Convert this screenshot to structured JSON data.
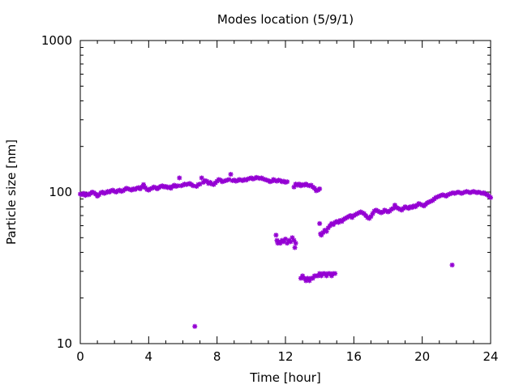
{
  "chart_data": {
    "type": "scatter",
    "title": "Modes location (5/9/1)",
    "xlabel": "Time [hour]",
    "ylabel": "Particle size [nm]",
    "xlim": [
      0,
      24
    ],
    "ylim": [
      10,
      1000
    ],
    "yscale": "log",
    "grid": false,
    "legend": "none",
    "x_ticks": [
      0,
      4,
      8,
      12,
      16,
      20,
      24
    ],
    "x_tick_labels": [
      "0",
      "4",
      "8",
      "12",
      "16",
      "20",
      "24"
    ],
    "y_ticks": [
      10,
      100,
      1000
    ],
    "y_tick_labels": [
      "10",
      "100",
      "1000"
    ],
    "marker_color": "#9400d3",
    "marker": "asterisk",
    "series": [
      {
        "name": "",
        "points": [
          [
            0.0,
            97
          ],
          [
            0.1,
            96
          ],
          [
            0.2,
            98
          ],
          [
            0.3,
            95
          ],
          [
            0.4,
            97
          ],
          [
            0.5,
            96
          ],
          [
            0.6,
            98
          ],
          [
            0.7,
            100
          ],
          [
            0.8,
            99
          ],
          [
            0.9,
            97
          ],
          [
            1.0,
            94
          ],
          [
            1.1,
            96
          ],
          [
            1.2,
            99
          ],
          [
            1.3,
            100
          ],
          [
            1.4,
            98
          ],
          [
            1.5,
            99
          ],
          [
            1.6,
            101
          ],
          [
            1.7,
            100
          ],
          [
            1.8,
            102
          ],
          [
            1.9,
            103
          ],
          [
            2.0,
            101
          ],
          [
            2.1,
            100
          ],
          [
            2.2,
            102
          ],
          [
            2.3,
            103
          ],
          [
            2.4,
            101
          ],
          [
            2.5,
            102
          ],
          [
            2.6,
            104
          ],
          [
            2.7,
            106
          ],
          [
            2.8,
            105
          ],
          [
            2.9,
            104
          ],
          [
            3.0,
            103
          ],
          [
            3.1,
            105
          ],
          [
            3.2,
            104
          ],
          [
            3.3,
            106
          ],
          [
            3.4,
            107
          ],
          [
            3.5,
            105
          ],
          [
            3.6,
            108
          ],
          [
            3.7,
            112
          ],
          [
            3.8,
            107
          ],
          [
            3.9,
            104
          ],
          [
            4.0,
            103
          ],
          [
            4.1,
            105
          ],
          [
            4.2,
            106
          ],
          [
            4.3,
            108
          ],
          [
            4.4,
            107
          ],
          [
            4.5,
            105
          ],
          [
            4.6,
            107
          ],
          [
            4.7,
            109
          ],
          [
            4.8,
            110
          ],
          [
            4.9,
            108
          ],
          [
            5.0,
            109
          ],
          [
            5.1,
            107
          ],
          [
            5.2,
            108
          ],
          [
            5.3,
            106
          ],
          [
            5.4,
            109
          ],
          [
            5.5,
            111
          ],
          [
            5.6,
            109
          ],
          [
            5.7,
            110
          ],
          [
            5.8,
            124
          ],
          [
            5.9,
            110
          ],
          [
            6.0,
            111
          ],
          [
            6.1,
            113
          ],
          [
            6.2,
            112
          ],
          [
            6.3,
            113
          ],
          [
            6.4,
            114
          ],
          [
            6.5,
            112
          ],
          [
            6.6,
            110
          ],
          [
            6.7,
            13
          ],
          [
            6.8,
            109
          ],
          [
            6.9,
            112
          ],
          [
            7.0,
            113
          ],
          [
            7.1,
            124
          ],
          [
            7.2,
            116
          ],
          [
            7.3,
            119
          ],
          [
            7.4,
            118
          ],
          [
            7.5,
            114
          ],
          [
            7.6,
            116
          ],
          [
            7.7,
            113
          ],
          [
            7.8,
            112
          ],
          [
            7.9,
            115
          ],
          [
            8.0,
            118
          ],
          [
            8.1,
            121
          ],
          [
            8.2,
            120
          ],
          [
            8.3,
            117
          ],
          [
            8.4,
            118
          ],
          [
            8.5,
            119
          ],
          [
            8.6,
            120
          ],
          [
            8.7,
            121
          ],
          [
            8.8,
            131
          ],
          [
            8.9,
            119
          ],
          [
            9.0,
            120
          ],
          [
            9.1,
            118
          ],
          [
            9.2,
            119
          ],
          [
            9.3,
            121
          ],
          [
            9.4,
            120
          ],
          [
            9.5,
            119
          ],
          [
            9.6,
            121
          ],
          [
            9.7,
            120
          ],
          [
            9.8,
            122
          ],
          [
            9.9,
            123
          ],
          [
            10.0,
            124
          ],
          [
            10.1,
            122
          ],
          [
            10.2,
            123
          ],
          [
            10.3,
            125
          ],
          [
            10.4,
            124
          ],
          [
            10.5,
            123
          ],
          [
            10.6,
            124
          ],
          [
            10.7,
            122
          ],
          [
            10.8,
            121
          ],
          [
            10.9,
            120
          ],
          [
            11.0,
            119
          ],
          [
            11.1,
            117
          ],
          [
            11.2,
            118
          ],
          [
            11.3,
            121
          ],
          [
            11.4,
            119
          ],
          [
            11.5,
            118
          ],
          [
            11.6,
            120
          ],
          [
            11.7,
            119
          ],
          [
            11.8,
            117
          ],
          [
            11.9,
            118
          ],
          [
            12.0,
            116
          ],
          [
            12.1,
            117
          ],
          [
            11.45,
            52
          ],
          [
            11.5,
            48
          ],
          [
            11.55,
            46
          ],
          [
            11.6,
            47
          ],
          [
            11.7,
            46
          ],
          [
            11.8,
            48
          ],
          [
            11.9,
            47
          ],
          [
            12.0,
            49
          ],
          [
            12.1,
            46
          ],
          [
            12.2,
            48
          ],
          [
            12.3,
            47
          ],
          [
            12.4,
            50
          ],
          [
            12.5,
            48
          ],
          [
            12.55,
            43
          ],
          [
            12.6,
            46
          ],
          [
            12.5,
            108
          ],
          [
            12.6,
            113
          ],
          [
            12.7,
            111
          ],
          [
            12.8,
            113
          ],
          [
            12.9,
            110
          ],
          [
            13.0,
            112
          ],
          [
            13.1,
            111
          ],
          [
            13.2,
            113
          ],
          [
            13.3,
            111
          ],
          [
            13.4,
            110
          ],
          [
            13.5,
            111
          ],
          [
            13.6,
            108
          ],
          [
            13.7,
            106
          ],
          [
            13.8,
            102
          ],
          [
            13.9,
            103
          ],
          [
            14.0,
            105
          ],
          [
            12.9,
            27
          ],
          [
            13.0,
            28
          ],
          [
            13.1,
            27
          ],
          [
            13.2,
            26
          ],
          [
            13.3,
            27
          ],
          [
            13.4,
            26
          ],
          [
            13.5,
            27
          ],
          [
            13.6,
            27
          ],
          [
            13.7,
            28
          ],
          [
            13.8,
            28
          ],
          [
            13.9,
            28
          ],
          [
            14.0,
            29
          ],
          [
            14.1,
            28
          ],
          [
            14.2,
            29
          ],
          [
            14.3,
            29
          ],
          [
            14.4,
            28
          ],
          [
            14.5,
            29
          ],
          [
            14.6,
            29
          ],
          [
            14.7,
            28
          ],
          [
            14.8,
            29
          ],
          [
            14.9,
            29
          ],
          [
            14.0,
            62
          ],
          [
            14.05,
            53
          ],
          [
            14.1,
            52
          ],
          [
            14.2,
            54
          ],
          [
            14.3,
            56
          ],
          [
            14.4,
            55
          ],
          [
            14.5,
            58
          ],
          [
            14.6,
            60
          ],
          [
            14.7,
            62
          ],
          [
            14.8,
            61
          ],
          [
            14.9,
            63
          ],
          [
            15.0,
            64
          ],
          [
            15.1,
            63
          ],
          [
            15.2,
            65
          ],
          [
            15.3,
            64
          ],
          [
            15.4,
            66
          ],
          [
            15.5,
            67
          ],
          [
            15.6,
            68
          ],
          [
            15.7,
            69
          ],
          [
            15.8,
            70
          ],
          [
            15.9,
            68
          ],
          [
            16.0,
            70
          ],
          [
            16.1,
            71
          ],
          [
            16.2,
            72
          ],
          [
            16.3,
            73
          ],
          [
            16.4,
            74
          ],
          [
            16.5,
            73
          ],
          [
            16.6,
            72
          ],
          [
            16.7,
            70
          ],
          [
            16.8,
            68
          ],
          [
            16.9,
            67
          ],
          [
            17.0,
            69
          ],
          [
            17.1,
            72
          ],
          [
            17.2,
            75
          ],
          [
            17.3,
            76
          ],
          [
            17.4,
            75
          ],
          [
            17.5,
            74
          ],
          [
            17.6,
            73
          ],
          [
            17.7,
            74
          ],
          [
            17.8,
            76
          ],
          [
            17.9,
            75
          ],
          [
            18.0,
            74
          ],
          [
            18.1,
            75
          ],
          [
            18.2,
            77
          ],
          [
            18.3,
            78
          ],
          [
            18.4,
            82
          ],
          [
            18.5,
            79
          ],
          [
            18.6,
            78
          ],
          [
            18.7,
            77
          ],
          [
            18.8,
            76
          ],
          [
            18.9,
            78
          ],
          [
            19.0,
            80
          ],
          [
            19.1,
            79
          ],
          [
            19.2,
            78
          ],
          [
            19.3,
            80
          ],
          [
            19.4,
            79
          ],
          [
            19.5,
            81
          ],
          [
            19.6,
            80
          ],
          [
            19.7,
            82
          ],
          [
            19.8,
            84
          ],
          [
            19.9,
            83
          ],
          [
            20.0,
            82
          ],
          [
            20.1,
            81
          ],
          [
            20.2,
            83
          ],
          [
            20.3,
            85
          ],
          [
            20.4,
            86
          ],
          [
            20.5,
            87
          ],
          [
            20.6,
            88
          ],
          [
            20.7,
            90
          ],
          [
            20.8,
            92
          ],
          [
            20.9,
            93
          ],
          [
            21.0,
            94
          ],
          [
            21.1,
            95
          ],
          [
            21.2,
            96
          ],
          [
            21.3,
            95
          ],
          [
            21.4,
            94
          ],
          [
            21.5,
            96
          ],
          [
            21.6,
            97
          ],
          [
            21.7,
            98
          ],
          [
            21.75,
            33
          ],
          [
            21.8,
            99
          ],
          [
            21.9,
            98
          ],
          [
            22.0,
            99
          ],
          [
            22.1,
            100
          ],
          [
            22.2,
            99
          ],
          [
            22.3,
            98
          ],
          [
            22.4,
            99
          ],
          [
            22.5,
            100
          ],
          [
            22.6,
            101
          ],
          [
            22.7,
            100
          ],
          [
            22.8,
            99
          ],
          [
            22.9,
            100
          ],
          [
            23.0,
            101
          ],
          [
            23.1,
            100
          ],
          [
            23.2,
            99
          ],
          [
            23.3,
            100
          ],
          [
            23.4,
            99
          ],
          [
            23.5,
            98
          ],
          [
            23.6,
            99
          ],
          [
            23.7,
            97
          ],
          [
            23.8,
            96
          ],
          [
            23.9,
            94
          ],
          [
            24.0,
            92
          ]
        ]
      }
    ]
  }
}
